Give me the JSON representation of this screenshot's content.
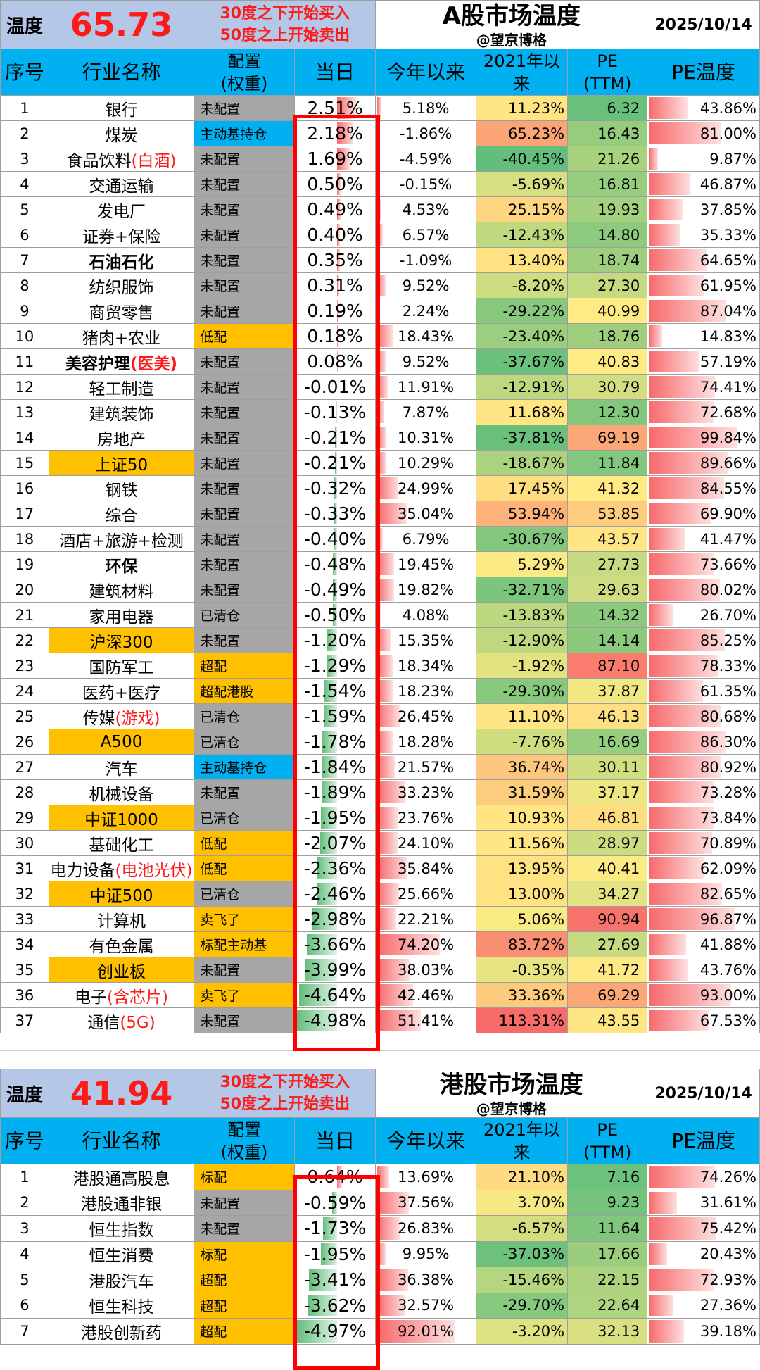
{
  "a_share": {
    "temp_label": "温度",
    "temp_value": "65.73",
    "rule_line1": "30度之下开始买入",
    "rule_line2": "50度之上开始卖出",
    "title": "A股市场温度",
    "author": "@望京博格",
    "date": "2025/10/14",
    "headers": {
      "idx": "序号",
      "name": "行业名称",
      "alloc": "配置\n(权重)",
      "day": "当日",
      "ytd": "今年以来",
      "since2021": "2021年以来",
      "pe": "PE\n(TTM)",
      "pet": "PE温度"
    },
    "rows": [
      {
        "idx": "1",
        "name": "银行",
        "alloc": "未配置",
        "day": "2.51%",
        "ytd": "5.18%",
        "since2021": "11.23%",
        "pe": "6.32",
        "pet": "43.86%"
      },
      {
        "idx": "2",
        "name": "煤炭",
        "alloc": "主动基持仓",
        "day": "2.18%",
        "ytd": "-1.86%",
        "since2021": "65.23%",
        "pe": "16.43",
        "pet": "81.00%"
      },
      {
        "idx": "3",
        "name": "食品饮料",
        "name_red": "(白酒)",
        "alloc": "未配置",
        "day": "1.69%",
        "ytd": "-4.59%",
        "since2021": "-40.45%",
        "pe": "21.26",
        "pet": "9.87%"
      },
      {
        "idx": "4",
        "name": "交通运输",
        "alloc": "未配置",
        "day": "0.50%",
        "ytd": "-0.15%",
        "since2021": "-5.69%",
        "pe": "16.81",
        "pet": "46.87%"
      },
      {
        "idx": "5",
        "name": "发电厂",
        "alloc": "未配置",
        "day": "0.49%",
        "ytd": "4.53%",
        "since2021": "25.15%",
        "pe": "19.93",
        "pet": "37.85%"
      },
      {
        "idx": "6",
        "name": "证券+保险",
        "alloc": "未配置",
        "day": "0.40%",
        "ytd": "6.57%",
        "since2021": "-12.43%",
        "pe": "14.80",
        "pet": "35.33%"
      },
      {
        "idx": "7",
        "name": "石油石化",
        "alloc": "未配置",
        "day": "0.35%",
        "ytd": "-1.09%",
        "since2021": "13.40%",
        "pe": "18.74",
        "pet": "64.65%"
      },
      {
        "idx": "8",
        "name": "纺织服饰",
        "alloc": "未配置",
        "day": "0.31%",
        "ytd": "9.52%",
        "since2021": "-8.20%",
        "pe": "27.30",
        "pet": "61.95%"
      },
      {
        "idx": "9",
        "name": "商贸零售",
        "alloc": "未配置",
        "day": "0.19%",
        "ytd": "2.24%",
        "since2021": "-29.22%",
        "pe": "40.99",
        "pet": "87.04%"
      },
      {
        "idx": "10",
        "name": "猪肉+农业",
        "alloc": "低配",
        "day": "0.18%",
        "ytd": "18.43%",
        "since2021": "-23.40%",
        "pe": "18.76",
        "pet": "14.83%"
      },
      {
        "idx": "11",
        "name": "美容护理",
        "name_red": "(医美)",
        "alloc": "未配置",
        "day": "0.08%",
        "ytd": "9.52%",
        "since2021": "-37.67%",
        "pe": "40.83",
        "pet": "57.19%"
      },
      {
        "idx": "12",
        "name": "轻工制造",
        "alloc": "未配置",
        "day": "-0.01%",
        "ytd": "11.91%",
        "since2021": "-12.91%",
        "pe": "30.79",
        "pet": "74.41%"
      },
      {
        "idx": "13",
        "name": "建筑装饰",
        "alloc": "未配置",
        "day": "-0.13%",
        "ytd": "7.87%",
        "since2021": "11.68%",
        "pe": "12.30",
        "pet": "72.68%"
      },
      {
        "idx": "14",
        "name": "房地产",
        "alloc": "未配置",
        "day": "-0.21%",
        "ytd": "10.31%",
        "since2021": "-37.81%",
        "pe": "69.19",
        "pet": "99.84%"
      },
      {
        "idx": "15",
        "name": "上证50",
        "alloc": "未配置",
        "day": "-0.21%",
        "ytd": "10.29%",
        "since2021": "-18.67%",
        "pe": "11.84",
        "pet": "89.66%"
      },
      {
        "idx": "16",
        "name": "钢铁",
        "alloc": "未配置",
        "day": "-0.32%",
        "ytd": "24.99%",
        "since2021": "17.45%",
        "pe": "41.32",
        "pet": "84.55%"
      },
      {
        "idx": "17",
        "name": "综合",
        "alloc": "未配置",
        "day": "-0.33%",
        "ytd": "35.04%",
        "since2021": "53.94%",
        "pe": "53.85",
        "pet": "69.90%"
      },
      {
        "idx": "18",
        "name": "酒店+旅游+检测",
        "alloc": "未配置",
        "day": "-0.40%",
        "ytd": "6.79%",
        "since2021": "-30.67%",
        "pe": "43.57",
        "pet": "41.47%"
      },
      {
        "idx": "19",
        "name": "环保",
        "alloc": "未配置",
        "day": "-0.48%",
        "ytd": "19.45%",
        "since2021": "5.29%",
        "pe": "27.73",
        "pet": "73.66%"
      },
      {
        "idx": "20",
        "name": "建筑材料",
        "alloc": "未配置",
        "day": "-0.49%",
        "ytd": "19.82%",
        "since2021": "-32.71%",
        "pe": "29.63",
        "pet": "80.02%"
      },
      {
        "idx": "21",
        "name": "家用电器",
        "alloc": "已清仓",
        "day": "-0.50%",
        "ytd": "4.08%",
        "since2021": "-13.83%",
        "pe": "14.32",
        "pet": "26.70%"
      },
      {
        "idx": "22",
        "name": "沪深300",
        "alloc": "未配置",
        "day": "-1.20%",
        "ytd": "15.35%",
        "since2021": "-12.90%",
        "pe": "14.14",
        "pet": "85.25%"
      },
      {
        "idx": "23",
        "name": "国防军工",
        "alloc": "超配",
        "day": "-1.29%",
        "ytd": "18.34%",
        "since2021": "-1.92%",
        "pe": "87.10",
        "pet": "78.33%"
      },
      {
        "idx": "24",
        "name": "医药+医疗",
        "alloc": "超配港股",
        "day": "-1.54%",
        "ytd": "18.23%",
        "since2021": "-29.30%",
        "pe": "37.87",
        "pet": "61.35%"
      },
      {
        "idx": "25",
        "name": "传媒",
        "name_red": "(游戏)",
        "alloc": "已清仓",
        "day": "-1.59%",
        "ytd": "26.45%",
        "since2021": "11.10%",
        "pe": "46.13",
        "pet": "80.68%"
      },
      {
        "idx": "26",
        "name": "A500",
        "alloc": "已清仓",
        "day": "-1.78%",
        "ytd": "18.28%",
        "since2021": "-7.76%",
        "pe": "16.69",
        "pet": "86.30%"
      },
      {
        "idx": "27",
        "name": "汽车",
        "alloc": "主动基持仓",
        "day": "-1.84%",
        "ytd": "21.57%",
        "since2021": "36.74%",
        "pe": "30.11",
        "pet": "80.92%"
      },
      {
        "idx": "28",
        "name": "机械设备",
        "alloc": "未配置",
        "day": "-1.89%",
        "ytd": "33.23%",
        "since2021": "31.59%",
        "pe": "37.17",
        "pet": "73.28%"
      },
      {
        "idx": "29",
        "name": "中证1000",
        "alloc": "已清仓",
        "day": "-1.95%",
        "ytd": "23.76%",
        "since2021": "10.93%",
        "pe": "46.81",
        "pet": "73.84%"
      },
      {
        "idx": "30",
        "name": "基础化工",
        "alloc": "低配",
        "day": "-2.07%",
        "ytd": "24.10%",
        "since2021": "11.56%",
        "pe": "28.97",
        "pet": "70.89%"
      },
      {
        "idx": "31",
        "name": "电力设备",
        "name_red": "(电池光伏)",
        "alloc": "低配",
        "day": "-2.36%",
        "ytd": "35.84%",
        "since2021": "13.95%",
        "pe": "40.41",
        "pet": "62.09%"
      },
      {
        "idx": "32",
        "name": "中证500",
        "alloc": "已清仓",
        "day": "-2.46%",
        "ytd": "25.66%",
        "since2021": "13.00%",
        "pe": "34.27",
        "pet": "82.65%"
      },
      {
        "idx": "33",
        "name": "计算机",
        "alloc": "卖飞了",
        "day": "-2.98%",
        "ytd": "22.21%",
        "since2021": "5.06%",
        "pe": "90.94",
        "pet": "96.87%"
      },
      {
        "idx": "34",
        "name": "有色金属",
        "alloc": "标配主动基",
        "day": "-3.66%",
        "ytd": "74.20%",
        "since2021": "83.72%",
        "pe": "27.69",
        "pet": "41.88%"
      },
      {
        "idx": "35",
        "name": "创业板",
        "alloc": "未配置",
        "day": "-3.99%",
        "ytd": "38.03%",
        "since2021": "-0.35%",
        "pe": "41.72",
        "pet": "43.76%"
      },
      {
        "idx": "36",
        "name": "电子",
        "name_red": "(含芯片)",
        "alloc": "卖飞了",
        "day": "-4.64%",
        "ytd": "42.46%",
        "since2021": "33.36%",
        "pe": "69.29",
        "pet": "93.00%"
      },
      {
        "idx": "37",
        "name": "通信",
        "name_red": "(5G)",
        "alloc": "未配置",
        "day": "-4.98%",
        "ytd": "51.41%",
        "since2021": "113.31%",
        "pe": "43.55",
        "pet": "67.53%"
      }
    ]
  },
  "hk_share": {
    "temp_label": "温度",
    "temp_value": "41.94",
    "rule_line1": "30度之下开始买入",
    "rule_line2": "50度之上开始卖出",
    "title": "港股市场温度",
    "author": "@望京博格",
    "date": "2025/10/14",
    "headers": {
      "idx": "序号",
      "name": "行业名称",
      "alloc": "配置\n(权重)",
      "day": "当日",
      "ytd": "今年以来",
      "since2021": "2021年以来",
      "pe": "PE\n(TTM)",
      "pet": "PE温度"
    },
    "rows": [
      {
        "idx": "1",
        "name": "港股通高股息",
        "alloc": "标配",
        "day": "0.64%",
        "ytd": "13.69%",
        "since2021": "21.10%",
        "pe": "7.16",
        "pet": "74.26%"
      },
      {
        "idx": "2",
        "name": "港股通非银",
        "alloc": "未配置",
        "day": "-0.59%",
        "ytd": "37.56%",
        "since2021": "3.70%",
        "pe": "9.23",
        "pet": "31.61%"
      },
      {
        "idx": "3",
        "name": "恒生指数",
        "alloc": "未配置",
        "day": "-1.73%",
        "ytd": "26.83%",
        "since2021": "-6.57%",
        "pe": "11.64",
        "pet": "75.42%"
      },
      {
        "idx": "4",
        "name": "恒生消费",
        "alloc": "标配",
        "day": "-1.95%",
        "ytd": "9.95%",
        "since2021": "-37.03%",
        "pe": "17.66",
        "pet": "20.43%"
      },
      {
        "idx": "5",
        "name": "港股汽车",
        "alloc": "超配",
        "day": "-3.41%",
        "ytd": "36.38%",
        "since2021": "-15.46%",
        "pe": "22.15",
        "pet": "72.93%"
      },
      {
        "idx": "6",
        "name": "恒生科技",
        "alloc": "超配",
        "day": "-3.62%",
        "ytd": "32.57%",
        "since2021": "-29.70%",
        "pe": "22.64",
        "pet": "27.36%"
      },
      {
        "idx": "7",
        "name": "港股创新药",
        "alloc": "超配",
        "day": "-4.97%",
        "ytd": "92.01%",
        "since2021": "-3.20%",
        "pe": "32.13",
        "pet": "39.18%"
      }
    ]
  }
}
